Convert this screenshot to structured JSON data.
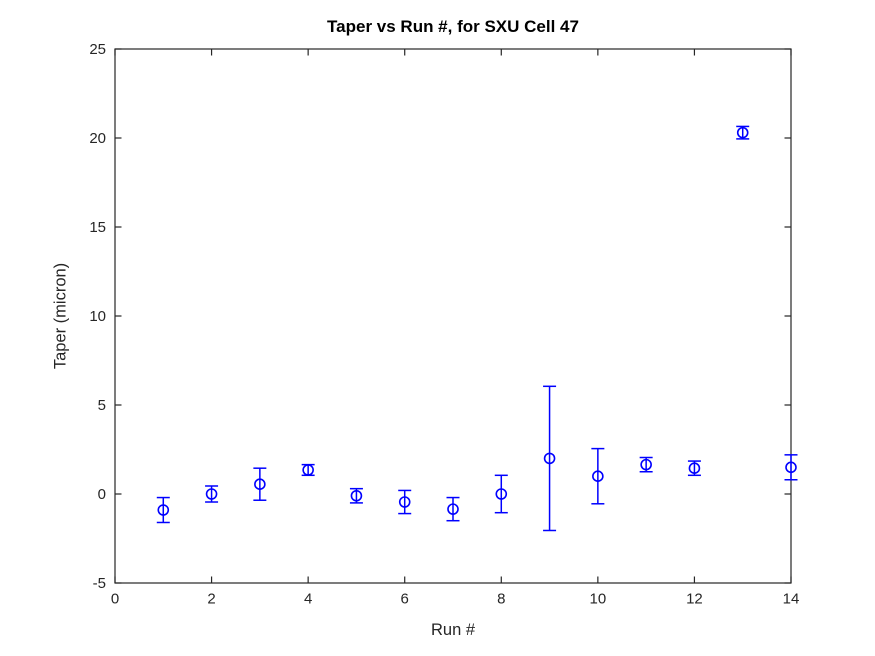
{
  "figure": {
    "background": "#FFFFFF"
  },
  "chart_data": {
    "type": "scatter",
    "title": "Taper vs Run #, for SXU Cell 47",
    "xlabel": "Run #",
    "ylabel": "Taper (micron)",
    "xlim": [
      0,
      14
    ],
    "ylim": [
      -5,
      25
    ],
    "xticks": [
      0,
      2,
      4,
      6,
      8,
      10,
      12,
      14
    ],
    "yticks": [
      -5,
      0,
      5,
      10,
      15,
      20,
      25
    ],
    "grid": false,
    "legend": "none",
    "axis_color": "#262626",
    "title_color": "#000000",
    "series": [
      {
        "name": "taper-errorbar-series",
        "marker": "open-circle",
        "color": "#0000FF",
        "x": [
          1,
          2,
          3,
          4,
          5,
          6,
          7,
          8,
          9,
          10,
          11,
          12,
          13,
          14
        ],
        "y": [
          -0.9,
          0.0,
          0.55,
          1.35,
          -0.1,
          -0.45,
          -0.85,
          0.0,
          2.0,
          1.0,
          1.65,
          1.45,
          20.3,
          1.5
        ],
        "yerr": [
          0.7,
          0.45,
          0.9,
          0.3,
          0.4,
          0.65,
          0.65,
          1.05,
          4.05,
          1.55,
          0.4,
          0.4,
          0.35,
          0.7
        ]
      }
    ]
  }
}
